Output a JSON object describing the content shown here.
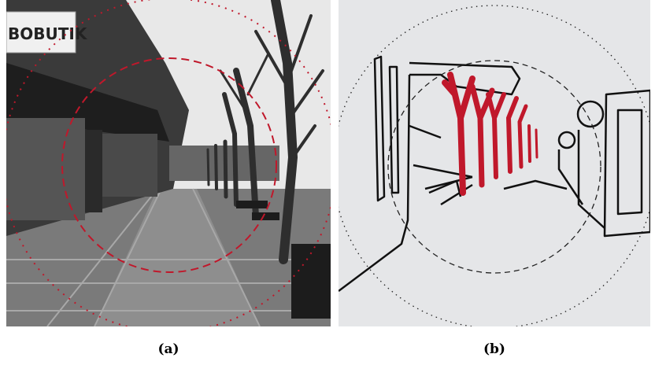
{
  "figure": {
    "panels": [
      {
        "caption": "(a)",
        "sign": "BOBUTIK"
      },
      {
        "caption": "(b)"
      }
    ]
  }
}
